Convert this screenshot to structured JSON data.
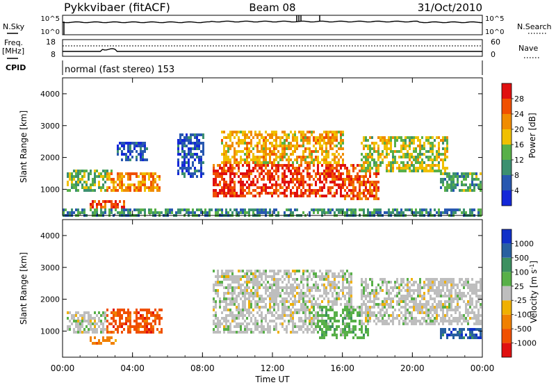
{
  "header": {
    "radar": "Pykkvibaer (fitACF)",
    "beam": "Beam 08",
    "date": "31/Oct/2010",
    "cpid_label": "CPID",
    "cpid_text": "normal (fast stereo) 153"
  },
  "noise_panel": {
    "left_label": "N.Sky",
    "right_label": "N.Search",
    "left_ticks": [
      "10^5",
      "10^0"
    ],
    "right_ticks": [
      "10^5",
      "10^0"
    ]
  },
  "freq_panel": {
    "left_label_1": "Freq.",
    "left_label_2": "[MHz]",
    "right_label": "Nave",
    "left_ticks": [
      "18",
      "8"
    ],
    "right_ticks": [
      "60",
      "0"
    ]
  },
  "chart_data": [
    {
      "type": "heatmap",
      "ylabel": "Slant Range [km]",
      "ylim": [
        180,
        4500
      ],
      "yticks": [
        "1000",
        "2000",
        "3000",
        "4000"
      ],
      "colorbar_label": "Power [dB]",
      "colorbar_ticks": [
        "4",
        "8",
        "12",
        "16",
        "20",
        "24",
        "28"
      ],
      "colors": [
        "#1428d8",
        "#2858b0",
        "#3c9070",
        "#58b048",
        "#f0c000",
        "#f08c00",
        "#f05000",
        "#e01010"
      ],
      "clim": [
        0,
        32
      ],
      "blobs": [
        {
          "t": [
            0.2,
            2.8
          ],
          "r": [
            1000,
            1700
          ],
          "v": 14
        },
        {
          "t": [
            2.5,
            5.5
          ],
          "r": [
            950,
            1600
          ],
          "v": 22
        },
        {
          "t": [
            1.5,
            3.5
          ],
          "r": [
            380,
            700
          ],
          "v": 26
        },
        {
          "t": [
            3.0,
            4.8
          ],
          "r": [
            1900,
            2500
          ],
          "v": 6
        },
        {
          "t": [
            6.5,
            8.0
          ],
          "r": [
            1400,
            2800
          ],
          "v": 5
        },
        {
          "t": [
            8.5,
            16.5
          ],
          "r": [
            800,
            1800
          ],
          "v": 28
        },
        {
          "t": [
            9.0,
            16.0
          ],
          "r": [
            1800,
            2900
          ],
          "v": 20
        },
        {
          "t": [
            16.0,
            18.0
          ],
          "r": [
            700,
            1800
          ],
          "v": 26
        },
        {
          "t": [
            17.0,
            22.0
          ],
          "r": [
            1600,
            2700
          ],
          "v": 16
        },
        {
          "t": [
            21.5,
            24.0
          ],
          "r": [
            1000,
            1600
          ],
          "v": 12
        },
        {
          "t": [
            0.0,
            24.0
          ],
          "r": [
            180,
            450
          ],
          "v": 10
        }
      ]
    },
    {
      "type": "heatmap",
      "ylabel": "Slant Range [km]",
      "ylim": [
        180,
        4500
      ],
      "yticks": [
        "1000",
        "2000",
        "3000",
        "4000"
      ],
      "colorbar_label": "Velocity [m s^-1]",
      "colorbar_ticks": [
        "1000",
        "500",
        "100",
        "25",
        "-25",
        "-100",
        "-500",
        "-1000"
      ],
      "colors": [
        "#1030c8",
        "#2860a0",
        "#3c9060",
        "#58b048",
        "#bebebe",
        "#f0b000",
        "#f08000",
        "#f05000",
        "#e01010"
      ],
      "blobs": [
        {
          "t": [
            0.2,
            2.5
          ],
          "r": [
            1000,
            1700
          ],
          "v": 4
        },
        {
          "t": [
            2.5,
            5.7
          ],
          "r": [
            950,
            1750
          ],
          "v": 7
        },
        {
          "t": [
            1.5,
            3.0
          ],
          "r": [
            600,
            900
          ],
          "v": 6
        },
        {
          "t": [
            8.5,
            16.5
          ],
          "r": [
            1000,
            3000
          ],
          "v": 4
        },
        {
          "t": [
            14.5,
            17.5
          ],
          "r": [
            800,
            1800
          ],
          "v": 3
        },
        {
          "t": [
            17.0,
            24.0
          ],
          "r": [
            1200,
            2700
          ],
          "v": 4
        },
        {
          "t": [
            21.5,
            24.0
          ],
          "r": [
            800,
            1100
          ],
          "v": 1
        }
      ]
    }
  ],
  "xaxis": {
    "label": "Time UT",
    "ticks": [
      "00:00",
      "04:00",
      "08:00",
      "12:00",
      "16:00",
      "20:00",
      "00:00"
    ],
    "xlim_hours": [
      0,
      24
    ]
  }
}
